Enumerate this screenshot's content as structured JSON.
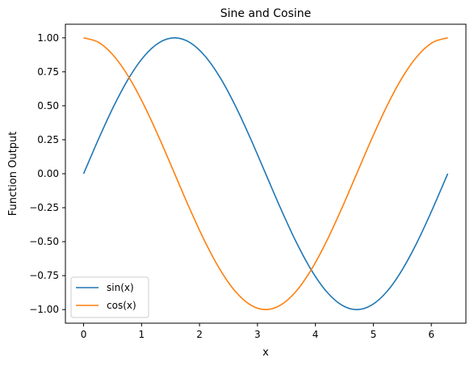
{
  "chart_data": {
    "type": "line",
    "title": "Sine and Cosine",
    "xlabel": "x",
    "ylabel": "Function Output",
    "xlim": [
      -0.314,
      6.597
    ],
    "ylim": [
      -1.1,
      1.1
    ],
    "x_ticks": [
      0,
      1,
      2,
      3,
      4,
      5,
      6
    ],
    "x_tick_labels": [
      "0",
      "1",
      "2",
      "3",
      "4",
      "5",
      "6"
    ],
    "y_ticks": [
      -1.0,
      -0.75,
      -0.5,
      -0.25,
      0.0,
      0.25,
      0.5,
      0.75,
      1.0
    ],
    "y_tick_labels": [
      "−1.00",
      "−0.75",
      "−0.50",
      "−0.25",
      "0.00",
      "0.25",
      "0.50",
      "0.75",
      "1.00"
    ],
    "grid": false,
    "legend_position": "lower-left",
    "x": [
      0.0,
      0.2618,
      0.5236,
      0.7854,
      1.0472,
      1.309,
      1.5708,
      1.8326,
      2.0944,
      2.3562,
      2.618,
      2.8798,
      3.1416,
      3.4034,
      3.6652,
      3.927,
      4.1888,
      4.4506,
      4.7124,
      4.9742,
      5.236,
      5.4978,
      5.7596,
      6.0214,
      6.2832
    ],
    "series": [
      {
        "name": "sin(x)",
        "color": "#1f77b4",
        "values": [
          0.0,
          0.2588,
          0.5,
          0.7071,
          0.866,
          0.9659,
          1.0,
          0.9659,
          0.866,
          0.7071,
          0.5,
          0.2588,
          0.0,
          -0.2588,
          -0.5,
          -0.7071,
          -0.866,
          -0.9659,
          -1.0,
          -0.9659,
          -0.866,
          -0.7071,
          -0.5,
          -0.2588,
          0.0
        ]
      },
      {
        "name": "cos(x)",
        "color": "#ff7f0e",
        "values": [
          1.0,
          0.9659,
          0.866,
          0.7071,
          0.5,
          0.2588,
          0.0,
          -0.2588,
          -0.5,
          -0.7071,
          -0.866,
          -0.9659,
          -1.0,
          -0.9659,
          -0.866,
          -0.7071,
          -0.5,
          -0.2588,
          0.0,
          0.2588,
          0.5,
          0.7071,
          0.866,
          0.9659,
          1.0
        ]
      }
    ]
  }
}
